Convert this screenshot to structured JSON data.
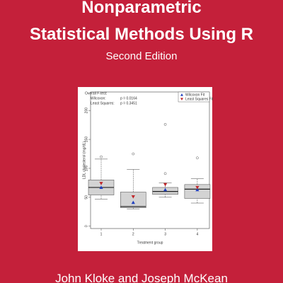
{
  "cover": {
    "title_line1": "Nonparametric",
    "title_line2": "Statistical Methods Using R",
    "edition": "Second Edition",
    "authors": "John Kloke and Joseph McKean"
  },
  "chart_data": {
    "type": "box",
    "y_label": "LDL cholesterol (mg/dL)",
    "x_label": "Treatment group",
    "categories": [
      "1",
      "2",
      "3",
      "4"
    ],
    "boxes": [
      {
        "low": 47,
        "q1": 54,
        "median": 67,
        "q3": 80,
        "high": 116,
        "outliers": [
          120
        ]
      },
      {
        "low": 30,
        "q1": 32,
        "median": 34,
        "q3": 59,
        "high": 98,
        "outliers": [
          125
        ]
      },
      {
        "low": 50,
        "q1": 55,
        "median": 60,
        "q3": 67,
        "high": 75,
        "outliers": [
          176,
          91
        ]
      },
      {
        "low": 40,
        "q1": 48,
        "median": 64,
        "q3": 72,
        "high": 82,
        "outliers": [
          118
        ]
      }
    ],
    "series": [
      {
        "name": "Wilcoxon Fit",
        "color": "#1f3fbf",
        "marker": "triangle-up",
        "values": [
          67,
          41,
          63,
          63
        ]
      },
      {
        "name": "Least Squares Fit",
        "color": "#c0282c",
        "marker": "triangle-down",
        "values": [
          74,
          51,
          72,
          67
        ]
      }
    ],
    "annotation": {
      "title": "Overall F-test:",
      "rows": [
        [
          "Wilcoxon:",
          "p = 0.0164"
        ],
        [
          "Least Squares:",
          "p = 0.3451"
        ]
      ]
    },
    "ylim": [
      -4,
      232
    ],
    "yticks": [
      0,
      50,
      100,
      150,
      200
    ],
    "legend": "upper right",
    "box_color": "#d3d3d3"
  }
}
